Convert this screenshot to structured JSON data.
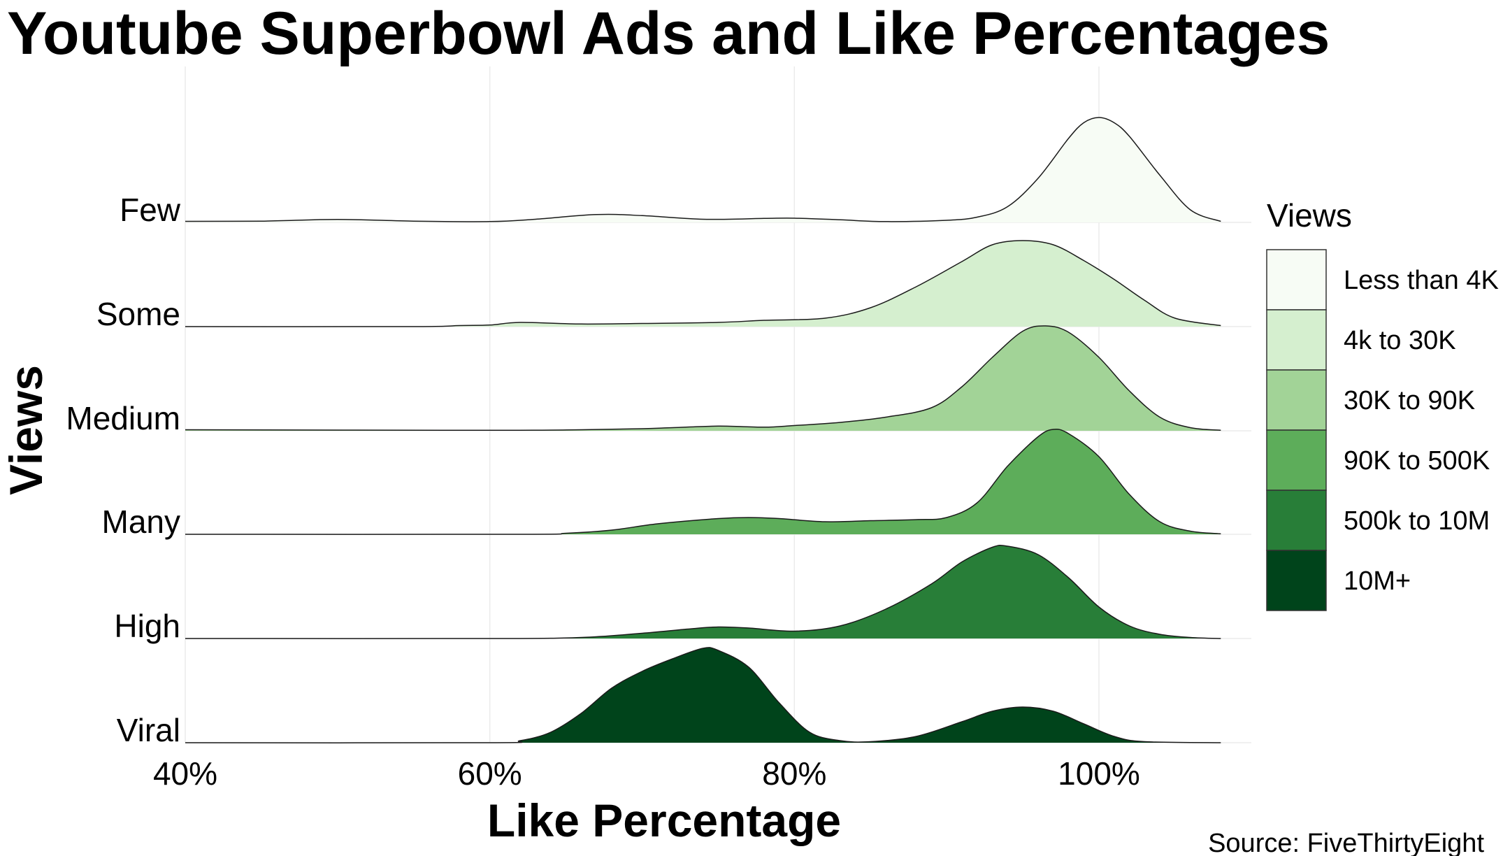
{
  "chart_data": {
    "type": "ridgeline",
    "title": "Youtube Superbowl Ads and Like Percentages",
    "xlabel": "Like Percentage",
    "ylabel": "Views",
    "caption": "Source: FiveThirtyEight",
    "xlim": [
      40,
      108
    ],
    "x_ticks": [
      40,
      60,
      80,
      100
    ],
    "x_tick_labels": [
      "40%",
      "60%",
      "80%",
      "100%"
    ],
    "grid": true,
    "legend": {
      "title": "Views",
      "position": "right",
      "entries": [
        {
          "label": "Less than 4K",
          "color": "#f7fcf5"
        },
        {
          "label": "4k to 30K",
          "color": "#d5efcf"
        },
        {
          "label": "30K to 90K",
          "color": "#a2d397"
        },
        {
          "label": "90K to 500K",
          "color": "#5dad5a"
        },
        {
          "label": "500k to 10M",
          "color": "#287e38"
        },
        {
          "label": "10M+",
          "color": "#00441b"
        }
      ]
    },
    "series": [
      {
        "name": "Few",
        "color": "#f7fcf5",
        "density": [
          [
            40,
            0.01
          ],
          [
            45,
            0.012
          ],
          [
            50,
            0.028
          ],
          [
            55,
            0.012
          ],
          [
            60,
            0.008
          ],
          [
            63,
            0.03
          ],
          [
            67,
            0.075
          ],
          [
            70,
            0.065
          ],
          [
            74,
            0.03
          ],
          [
            78,
            0.038
          ],
          [
            80,
            0.04
          ],
          [
            83,
            0.025
          ],
          [
            86,
            0.008
          ],
          [
            90,
            0.02
          ],
          [
            92,
            0.05
          ],
          [
            94,
            0.15
          ],
          [
            96,
            0.42
          ],
          [
            98,
            0.8
          ],
          [
            99,
            0.95
          ],
          [
            100,
            1.0
          ],
          [
            101,
            0.95
          ],
          [
            102,
            0.82
          ],
          [
            104,
            0.45
          ],
          [
            106,
            0.12
          ],
          [
            108,
            0.01
          ]
        ]
      },
      {
        "name": "Some",
        "color": "#d5efcf",
        "density": [
          [
            40,
            0.0
          ],
          [
            55,
            0.0
          ],
          [
            58,
            0.01
          ],
          [
            60,
            0.015
          ],
          [
            62,
            0.04
          ],
          [
            66,
            0.025
          ],
          [
            70,
            0.03
          ],
          [
            75,
            0.04
          ],
          [
            78,
            0.06
          ],
          [
            82,
            0.08
          ],
          [
            85,
            0.18
          ],
          [
            88,
            0.38
          ],
          [
            91,
            0.62
          ],
          [
            93,
            0.78
          ],
          [
            95,
            0.82
          ],
          [
            97,
            0.78
          ],
          [
            99,
            0.63
          ],
          [
            101,
            0.45
          ],
          [
            103,
            0.25
          ],
          [
            105,
            0.08
          ],
          [
            108,
            0.01
          ]
        ]
      },
      {
        "name": "Medium",
        "color": "#a2d397",
        "density": [
          [
            40,
            0.01
          ],
          [
            60,
            0.005
          ],
          [
            66,
            0.01
          ],
          [
            70,
            0.02
          ],
          [
            72,
            0.03
          ],
          [
            75,
            0.045
          ],
          [
            78,
            0.035
          ],
          [
            80,
            0.05
          ],
          [
            83,
            0.08
          ],
          [
            86,
            0.13
          ],
          [
            89,
            0.22
          ],
          [
            91,
            0.42
          ],
          [
            93,
            0.7
          ],
          [
            95,
            0.95
          ],
          [
            96.5,
            1.0
          ],
          [
            98,
            0.94
          ],
          [
            100,
            0.7
          ],
          [
            102,
            0.38
          ],
          [
            104,
            0.13
          ],
          [
            106,
            0.03
          ],
          [
            108,
            0.005
          ]
        ]
      },
      {
        "name": "Many",
        "color": "#5dad5a",
        "density": [
          [
            40,
            0.0
          ],
          [
            62,
            0.0
          ],
          [
            65,
            0.01
          ],
          [
            68,
            0.04
          ],
          [
            71,
            0.1
          ],
          [
            75,
            0.15
          ],
          [
            77,
            0.16
          ],
          [
            79,
            0.15
          ],
          [
            82,
            0.12
          ],
          [
            85,
            0.13
          ],
          [
            88,
            0.14
          ],
          [
            90,
            0.16
          ],
          [
            92,
            0.3
          ],
          [
            94,
            0.65
          ],
          [
            96,
            0.93
          ],
          [
            97,
            1.0
          ],
          [
            98,
            0.96
          ],
          [
            100,
            0.74
          ],
          [
            102,
            0.38
          ],
          [
            104,
            0.12
          ],
          [
            106,
            0.03
          ],
          [
            108,
            0.005
          ]
        ]
      },
      {
        "name": "High",
        "color": "#287e38",
        "density": [
          [
            40,
            0.0
          ],
          [
            60,
            0.0
          ],
          [
            66,
            0.01
          ],
          [
            70,
            0.05
          ],
          [
            73,
            0.09
          ],
          [
            75,
            0.11
          ],
          [
            77,
            0.1
          ],
          [
            80,
            0.07
          ],
          [
            83,
            0.12
          ],
          [
            86,
            0.28
          ],
          [
            89,
            0.52
          ],
          [
            91,
            0.73
          ],
          [
            93,
            0.87
          ],
          [
            94,
            0.88
          ],
          [
            96,
            0.8
          ],
          [
            98,
            0.58
          ],
          [
            100,
            0.3
          ],
          [
            102,
            0.12
          ],
          [
            104,
            0.04
          ],
          [
            106,
            0.01
          ],
          [
            108,
            0.0
          ]
        ]
      },
      {
        "name": "Viral",
        "color": "#00441b",
        "density": [
          [
            40,
            0.0
          ],
          [
            60,
            0.0
          ],
          [
            62,
            0.02
          ],
          [
            64,
            0.1
          ],
          [
            66,
            0.28
          ],
          [
            68,
            0.52
          ],
          [
            70,
            0.68
          ],
          [
            72,
            0.8
          ],
          [
            74,
            0.9
          ],
          [
            75,
            0.88
          ],
          [
            77,
            0.72
          ],
          [
            79,
            0.38
          ],
          [
            81,
            0.1
          ],
          [
            83,
            0.02
          ],
          [
            85,
            0.01
          ],
          [
            88,
            0.06
          ],
          [
            91,
            0.2
          ],
          [
            93,
            0.3
          ],
          [
            95,
            0.34
          ],
          [
            97,
            0.3
          ],
          [
            99,
            0.18
          ],
          [
            101,
            0.06
          ],
          [
            103,
            0.01
          ],
          [
            108,
            0.0
          ]
        ]
      }
    ]
  }
}
